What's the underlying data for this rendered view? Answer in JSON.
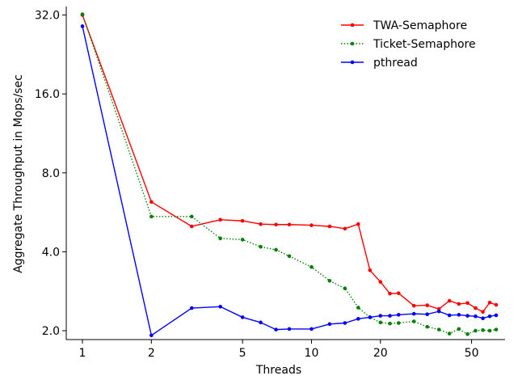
{
  "chart_data": {
    "type": "line",
    "title": "",
    "xlabel": "Threads",
    "ylabel": "Aggregate Throughput in Mops/sec",
    "x_scale": "log",
    "y_scale": "log2",
    "xlim": [
      0.85,
      70
    ],
    "ylim": [
      1.85,
      34.5
    ],
    "x_ticks": [
      1,
      2,
      5,
      10,
      20,
      50
    ],
    "x_tick_labels": [
      "1",
      "2",
      "5",
      "10",
      "20",
      "50"
    ],
    "y_ticks": [
      2,
      4,
      8,
      16,
      32
    ],
    "y_tick_labels": [
      "2.0",
      "4.0",
      "8.0",
      "16.0",
      "32.0"
    ],
    "grid": false,
    "legend_position": "top-right",
    "series": [
      {
        "name": "TWA-Semaphore",
        "color": "#ff0000",
        "line_style": "solid",
        "x": [
          1,
          2,
          3,
          4,
          5,
          6,
          7,
          8,
          10,
          12,
          14,
          16,
          18,
          20,
          22,
          24,
          28,
          32,
          36,
          40,
          44,
          48,
          52,
          56,
          60,
          64
        ],
        "y": [
          32.0,
          6.2,
          5.0,
          5.3,
          5.25,
          5.1,
          5.08,
          5.08,
          5.05,
          5.0,
          4.9,
          5.1,
          3.4,
          3.07,
          2.77,
          2.78,
          2.49,
          2.5,
          2.42,
          2.6,
          2.53,
          2.55,
          2.44,
          2.36,
          2.56,
          2.51
        ]
      },
      {
        "name": "Ticket-Semaphore",
        "color": "#008000",
        "line_style": "dotted",
        "x": [
          1,
          2,
          3,
          4,
          5,
          6,
          7,
          8,
          10,
          12,
          14,
          16,
          18,
          20,
          22,
          24,
          28,
          32,
          36,
          40,
          44,
          48,
          52,
          56,
          60,
          64
        ],
        "y": [
          32.2,
          5.45,
          5.45,
          4.5,
          4.45,
          4.18,
          4.07,
          3.85,
          3.5,
          3.1,
          2.9,
          2.45,
          2.25,
          2.15,
          2.13,
          2.14,
          2.17,
          2.07,
          2.02,
          1.95,
          2.03,
          1.94,
          2.0,
          2.01,
          2.0,
          2.02
        ]
      },
      {
        "name": "pthread",
        "color": "#0000ff",
        "line_style": "solid",
        "x": [
          1,
          2,
          3,
          4,
          5,
          6,
          7,
          8,
          10,
          12,
          14,
          16,
          18,
          20,
          22,
          24,
          28,
          32,
          36,
          40,
          44,
          48,
          52,
          56,
          60,
          64
        ],
        "y": [
          29.0,
          1.92,
          2.44,
          2.47,
          2.25,
          2.15,
          2.02,
          2.03,
          2.03,
          2.12,
          2.14,
          2.22,
          2.25,
          2.28,
          2.28,
          2.3,
          2.32,
          2.31,
          2.37,
          2.29,
          2.3,
          2.28,
          2.27,
          2.23,
          2.27,
          2.29
        ]
      }
    ]
  }
}
